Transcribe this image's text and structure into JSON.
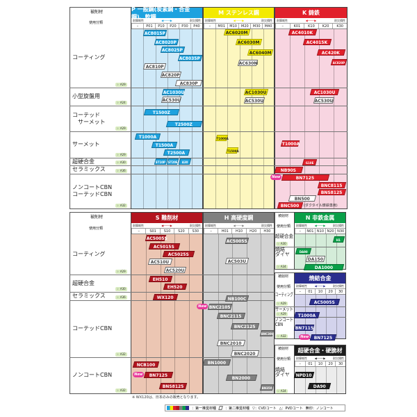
{
  "labels": {
    "work": "被削材",
    "class": "使用分類",
    "wear": "耐摩耗性",
    "tough": "耐欠損性"
  },
  "colors": {
    "P": "#1ea2df",
    "M": "#f3ea00",
    "K": "#e1202b",
    "S": "#b3151f",
    "H": "#808080",
    "N": "#0a9f48",
    "SA": "#2a2e8e",
    "HB": "#1e1e1e"
  },
  "panels": [
    {
      "id": "P",
      "title": "P 一般鋼(炭素鋼・合金鋼)、軟鋼",
      "ticks": [
        "–",
        "P01",
        "P10",
        "P20",
        "P30",
        "P40"
      ]
    },
    {
      "id": "M",
      "title": "M ステンレス鋼",
      "ticks": [
        "–",
        "M01",
        "M10",
        "M20",
        "M30",
        "M40"
      ]
    },
    {
      "id": "K",
      "title": "K 鋳鉄",
      "ticks": [
        "–",
        "K01",
        "K10",
        "K20",
        "K30"
      ]
    },
    {
      "id": "S",
      "title": "S 難削材",
      "ticks": [
        "–",
        "S01",
        "S10",
        "S20",
        "S30"
      ]
    },
    {
      "id": "H",
      "title": "H 高硬度鋼",
      "ticks": [
        "–",
        "H01",
        "H10",
        "H20",
        "H30"
      ]
    },
    {
      "id": "N",
      "title": "N 非鉄金属",
      "ticks": [
        "–",
        "N01",
        "N10",
        "N20",
        "N30"
      ]
    },
    {
      "id": "SA",
      "title": "焼結合金",
      "ticks": [
        "–",
        "01",
        "10",
        "20",
        "30"
      ]
    },
    {
      "id": "HB",
      "title": "超硬合金・硬脆材",
      "ticks": [
        "–",
        "01",
        "10",
        "20",
        "30"
      ]
    }
  ],
  "rows_top": [
    {
      "label": "コーティング",
      "ref": "A29"
    },
    {
      "label": "小型旋盤用",
      "ref": "A24"
    },
    {
      "label": "コーテッド\n　サーメット",
      "ref": "A29"
    },
    {
      "label": "サーメット",
      "ref": "A29"
    },
    {
      "label": "超硬合金",
      "ref": "A30"
    },
    {
      "label": "セラミックス",
      "ref": "A36"
    },
    {
      "label": "ノンコートCBN\nコーテッドCBN",
      "ref": "A32"
    }
  ],
  "rows_bottom": [
    {
      "label": "コーティング",
      "ref": "A29"
    },
    {
      "label": "超硬合金",
      "ref": "A30"
    },
    {
      "label": "セラミックス",
      "ref": "A36"
    },
    {
      "label": "コーテッドCBN",
      "ref": "A32"
    },
    {
      "label": "ノンコートCBN",
      "ref": "A32"
    }
  ],
  "rows_N": [
    {
      "label": "超硬合金",
      "ref": "A30"
    },
    {
      "label": "焼結\nダイヤ",
      "ref": "A34"
    }
  ],
  "rows_SA": [
    {
      "label": "コーティング",
      "ref": "A29"
    },
    {
      "label": "サーメット",
      "ref": "A29"
    },
    {
      "label": "ノンコート\nCBN",
      "ref": "A32"
    }
  ],
  "rows_HB": [
    {
      "label": "焼結\nダイヤ",
      "ref": "A34"
    }
  ],
  "chips": [
    {
      "p": "P",
      "name": "AC8015P",
      "type": "fill"
    },
    {
      "p": "P",
      "name": "AC8020P",
      "type": "fill"
    },
    {
      "p": "P",
      "name": "AC8025P",
      "type": "fill"
    },
    {
      "p": "P",
      "name": "AC8035P",
      "type": "fill"
    },
    {
      "p": "P",
      "name": "AC810P",
      "type": "outline"
    },
    {
      "p": "P",
      "name": "AC820P",
      "type": "outline"
    },
    {
      "p": "P",
      "name": "AC830P",
      "type": "outline"
    },
    {
      "p": "P",
      "name": "AC1030U",
      "type": "fill"
    },
    {
      "p": "P",
      "name": "AC530U",
      "type": "outline"
    },
    {
      "p": "P",
      "name": "T1500Z",
      "type": "fill"
    },
    {
      "p": "P",
      "name": "T2500Z",
      "type": "fill"
    },
    {
      "p": "P",
      "name": "T1000A",
      "type": "fill"
    },
    {
      "p": "P",
      "name": "T1500A",
      "type": "fill"
    },
    {
      "p": "P",
      "name": "T2500A",
      "type": "fill"
    },
    {
      "p": "P",
      "name": "ST10P",
      "type": "fill"
    },
    {
      "p": "P",
      "name": "ST20E",
      "type": "fill"
    },
    {
      "p": "P",
      "name": "A30",
      "type": "fill"
    },
    {
      "p": "M",
      "name": "AC6020M",
      "type": "fill"
    },
    {
      "p": "M",
      "name": "AC6030M",
      "type": "fill"
    },
    {
      "p": "M",
      "name": "AC6040M",
      "type": "fill"
    },
    {
      "p": "M",
      "name": "AC630M",
      "type": "outline"
    },
    {
      "p": "M",
      "name": "AC1030U",
      "type": "fill"
    },
    {
      "p": "M",
      "name": "AC530U",
      "type": "outline"
    },
    {
      "p": "M",
      "name": "T1000A",
      "type": "fill"
    },
    {
      "p": "M",
      "name": "T1500A",
      "type": "fill"
    },
    {
      "p": "K",
      "name": "AC4010K",
      "type": "fill"
    },
    {
      "p": "K",
      "name": "AC4015K",
      "type": "fill"
    },
    {
      "p": "K",
      "name": "AC420K",
      "type": "fill"
    },
    {
      "p": "K",
      "name": "AC820P",
      "type": "fill"
    },
    {
      "p": "K",
      "name": "AC1030U",
      "type": "fill"
    },
    {
      "p": "K",
      "name": "AC530U",
      "type": "outline"
    },
    {
      "p": "K",
      "name": "T1000A",
      "type": "fill"
    },
    {
      "p": "K",
      "name": "G10E",
      "type": "fill"
    },
    {
      "p": "K",
      "name": "NB90S",
      "type": "fill"
    },
    {
      "p": "K",
      "name": "BN7125",
      "type": "fill",
      "new": "New"
    },
    {
      "p": "K",
      "name": "BNC8115",
      "type": "fill"
    },
    {
      "p": "K",
      "name": "BNS8125",
      "type": "fill"
    },
    {
      "p": "K",
      "name": "BN500",
      "type": "outline"
    },
    {
      "p": "K",
      "name": "BNC500",
      "type": "fill"
    },
    {
      "p": "S",
      "name": "AC5005S",
      "type": "fill"
    },
    {
      "p": "S",
      "name": "AC5015S",
      "type": "fill"
    },
    {
      "p": "S",
      "name": "AC5025S",
      "type": "fill"
    },
    {
      "p": "S",
      "name": "AC510U",
      "type": "outline"
    },
    {
      "p": "S",
      "name": "AC520U",
      "type": "outline"
    },
    {
      "p": "S",
      "name": "EH510",
      "type": "fill"
    },
    {
      "p": "S",
      "name": "EH520",
      "type": "fill"
    },
    {
      "p": "S",
      "name": "WX120",
      "type": "fill"
    },
    {
      "p": "S",
      "name": "NCB100",
      "type": "fill"
    },
    {
      "p": "S",
      "name": "BN7125",
      "type": "fill",
      "new": "New"
    },
    {
      "p": "S",
      "name": "BNS8125",
      "type": "fill"
    },
    {
      "p": "H",
      "name": "AC5005S",
      "type": "fill"
    },
    {
      "p": "H",
      "name": "AC503U",
      "type": "outline"
    },
    {
      "p": "H",
      "name": "NB100C",
      "type": "fill"
    },
    {
      "p": "H",
      "name": "BNC2105",
      "type": "fill",
      "new": "New"
    },
    {
      "p": "H",
      "name": "BNC2115",
      "type": "fill"
    },
    {
      "p": "H",
      "name": "BNC2125",
      "type": "fill"
    },
    {
      "p": "H",
      "name": "BNC300",
      "type": "fill"
    },
    {
      "p": "H",
      "name": "BNC2010",
      "type": "outline"
    },
    {
      "p": "H",
      "name": "BNC2020",
      "type": "outline"
    },
    {
      "p": "H",
      "name": "BN1000",
      "type": "fill"
    },
    {
      "p": "H",
      "name": "BN2000",
      "type": "fill"
    },
    {
      "p": "H",
      "name": "BN350",
      "type": "fill"
    },
    {
      "p": "N",
      "name": "H1",
      "type": "fill"
    },
    {
      "p": "N",
      "name": "DA90",
      "type": "fill"
    },
    {
      "p": "N",
      "name": "DA150",
      "type": "outline"
    },
    {
      "p": "N",
      "name": "DA1000",
      "type": "fill"
    },
    {
      "p": "SA",
      "name": "AC5005S",
      "type": "fill"
    },
    {
      "p": "SA",
      "name": "T1000A",
      "type": "fill"
    },
    {
      "p": "SA",
      "name": "BN7115",
      "type": "fill"
    },
    {
      "p": "SA",
      "name": "BN7125",
      "type": "fill",
      "new": "New"
    },
    {
      "p": "HB",
      "name": "NPD10",
      "type": "fill"
    },
    {
      "p": "HB",
      "name": "DA90",
      "type": "fill"
    }
  ],
  "bnc500_note": "(ダクタイル鋳鉄専用)",
  "footnote": "※ WX120は、日本のみの販売となります。",
  "legend": {
    "first": "：第一推奨材種",
    "second": "：第二推奨材種",
    "cvd": "▽：CVDコート",
    "pvd": "△：PVDコート",
    "none": "無印：ノンコート"
  }
}
